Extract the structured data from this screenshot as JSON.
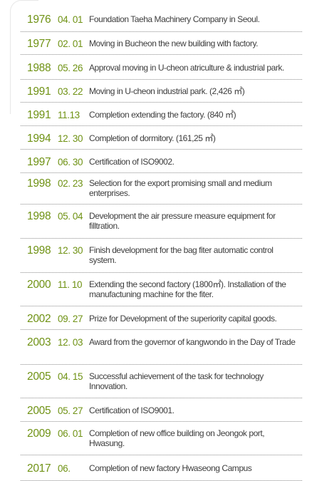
{
  "history": [
    {
      "year": "1976",
      "date": "04. 01",
      "text": "Foundation Taeha Machinery Company in Seoul."
    },
    {
      "year": "1977",
      "date": "02. 01",
      "text": "Moving in Bucheon the new building with factory."
    },
    {
      "year": "1988",
      "date": "05. 26",
      "text": "Approval moving in U-cheon atriculture & industrial park."
    },
    {
      "year": "1991",
      "date": "03. 22",
      "text": "Moving in U-cheon industrial park. (2,426 ㎡)"
    },
    {
      "year": "1991",
      "date": "11.13",
      "text": "Completion extending the factory. (840 ㎡)"
    },
    {
      "year": "1994",
      "date": "12. 30",
      "text": "Completion of dormitory. (161,25 ㎡)"
    },
    {
      "year": "1997",
      "date": "06. 30",
      "text": "Certification of ISO9002."
    },
    {
      "year": "1998",
      "date": "02. 23",
      "text": "Selection for the export promising small and medium enterprises."
    },
    {
      "year": "1998",
      "date": "05. 04",
      "text": "Development the air pressure measure equipment for filltration."
    },
    {
      "year": "1998",
      "date": "12. 30",
      "text": "Finish development for the bag fiter automatic control system."
    },
    {
      "year": "2000",
      "date": "11. 10",
      "text": "Extending the second factory (1800㎡). Installation of the manufactuning machine for the fiter."
    },
    {
      "year": "2002",
      "date": "09. 27",
      "text": "Prize for Development of the superiority capital goods."
    },
    {
      "year": "2003",
      "date": "12. 03",
      "text": "Award from the governor of kangwondo in the Day of Trade"
    },
    {
      "year": "2005",
      "date": "04. 15",
      "text": "Successful achievement of the task for technology Innovation."
    },
    {
      "year": "2005",
      "date": "05. 27",
      "text": "Certification of ISO9001."
    },
    {
      "year": "2009",
      "date": "06. 01",
      "text": "Completion of new office building on Jeongok port, Hwasung."
    },
    {
      "year": "2017",
      "date": "06.",
      "text": "Completion of new factory Hwaseong Campus"
    }
  ]
}
